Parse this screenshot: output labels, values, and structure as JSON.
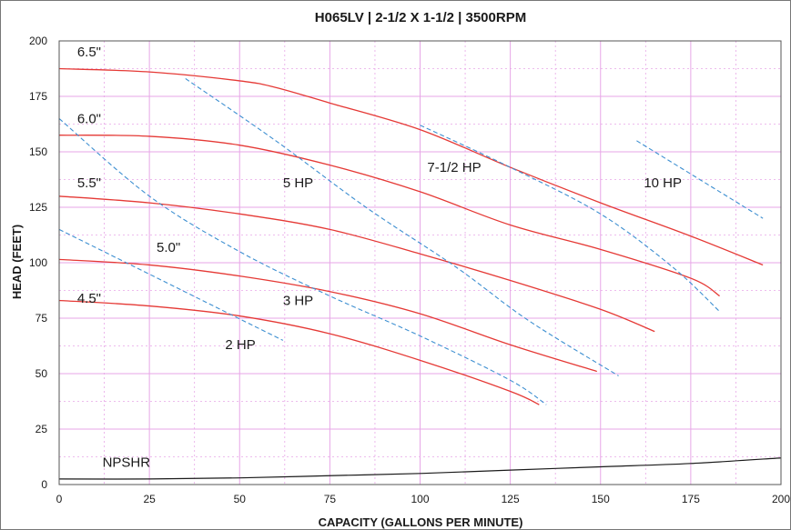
{
  "chart_data": {
    "type": "line",
    "title": "H065LV | 2-1/2 X 1-1/2 | 3500RPM",
    "xlabel": "CAPACITY (GALLONS PER MINUTE)",
    "ylabel": "HEAD (FEET)",
    "xlim": [
      0,
      200
    ],
    "ylim": [
      0,
      200
    ],
    "xticks": [
      0,
      25,
      50,
      75,
      100,
      125,
      150,
      175,
      200
    ],
    "yticks": [
      0,
      25,
      50,
      75,
      100,
      125,
      150,
      175,
      200
    ],
    "xtick_labels": [
      "0",
      "25",
      "50",
      "75",
      "100",
      "125",
      "150",
      "175",
      "200"
    ],
    "ytick_labels": [
      "0",
      "25",
      "50",
      "75",
      "100",
      "125",
      "150",
      "175",
      "200"
    ],
    "grid": true,
    "colors": {
      "impeller": "#e53935",
      "horsepower": "#3d8fd1",
      "npshr": "#1a1a1a",
      "grid": "#e7a6e7",
      "frame": "#555555"
    },
    "impeller_curves": [
      {
        "name": "6.5\"",
        "label_at": [
          5,
          193
        ],
        "points": [
          [
            0,
            187.5
          ],
          [
            25,
            186
          ],
          [
            50,
            182
          ],
          [
            60,
            179
          ],
          [
            75,
            172
          ],
          [
            100,
            160
          ],
          [
            125,
            143
          ],
          [
            150,
            127
          ],
          [
            175,
            112
          ],
          [
            195,
            99
          ]
        ]
      },
      {
        "name": "6.0\"",
        "label_at": [
          5,
          163
        ],
        "points": [
          [
            0,
            157.5
          ],
          [
            25,
            157
          ],
          [
            50,
            153
          ],
          [
            75,
            144
          ],
          [
            100,
            132
          ],
          [
            125,
            117
          ],
          [
            150,
            106
          ],
          [
            175,
            93
          ],
          [
            183,
            85
          ]
        ]
      },
      {
        "name": "5.5\"",
        "label_at": [
          5,
          134
        ],
        "points": [
          [
            0,
            130
          ],
          [
            25,
            127
          ],
          [
            50,
            122
          ],
          [
            75,
            115
          ],
          [
            100,
            104
          ],
          [
            125,
            92
          ],
          [
            150,
            79
          ],
          [
            165,
            69
          ]
        ]
      },
      {
        "name": "5.0\"",
        "label_at": [
          27,
          105
        ],
        "points": [
          [
            0,
            101.5
          ],
          [
            25,
            99
          ],
          [
            50,
            94
          ],
          [
            75,
            87
          ],
          [
            100,
            77
          ],
          [
            125,
            63
          ],
          [
            149,
            51
          ]
        ]
      },
      {
        "name": "4.5\"",
        "label_at": [
          5,
          82
        ],
        "points": [
          [
            0,
            83
          ],
          [
            25,
            80.5
          ],
          [
            50,
            76
          ],
          [
            75,
            68
          ],
          [
            100,
            56
          ],
          [
            125,
            42
          ],
          [
            133,
            36
          ]
        ]
      }
    ],
    "horsepower_lines": [
      {
        "name": "2 HP",
        "label_at": [
          46,
          61
        ],
        "points": [
          [
            0,
            115
          ],
          [
            62,
            65
          ]
        ]
      },
      {
        "name": "3 HP",
        "label_at": [
          62,
          81
        ],
        "points": [
          [
            0,
            165
          ],
          [
            25,
            130
          ],
          [
            50,
            105
          ],
          [
            75,
            85
          ],
          [
            100,
            67
          ],
          [
            125,
            47
          ],
          [
            135,
            36
          ]
        ]
      },
      {
        "name": "5 HP",
        "label_at": [
          62,
          134
        ],
        "points": [
          [
            35,
            183
          ],
          [
            60,
            155
          ],
          [
            85,
            125
          ],
          [
            110,
            98
          ],
          [
            130,
            74
          ],
          [
            155,
            49
          ]
        ]
      },
      {
        "name": "7-1/2 HP",
        "label_at": [
          102,
          141
        ],
        "points": [
          [
            100,
            162
          ],
          [
            125,
            143
          ],
          [
            150,
            122
          ],
          [
            170,
            98
          ],
          [
            183,
            78
          ]
        ]
      },
      {
        "name": "10 HP",
        "label_at": [
          162,
          134
        ],
        "points": [
          [
            160,
            155
          ],
          [
            195,
            120
          ]
        ]
      }
    ],
    "npshr_curve": {
      "name": "NPSHR",
      "label_at": [
        12,
        8
      ],
      "points": [
        [
          0,
          2.5
        ],
        [
          25,
          2.5
        ],
        [
          50,
          3
        ],
        [
          75,
          4
        ],
        [
          100,
          5
        ],
        [
          125,
          6.5
        ],
        [
          150,
          8
        ],
        [
          175,
          9.5
        ],
        [
          200,
          12
        ]
      ]
    }
  }
}
